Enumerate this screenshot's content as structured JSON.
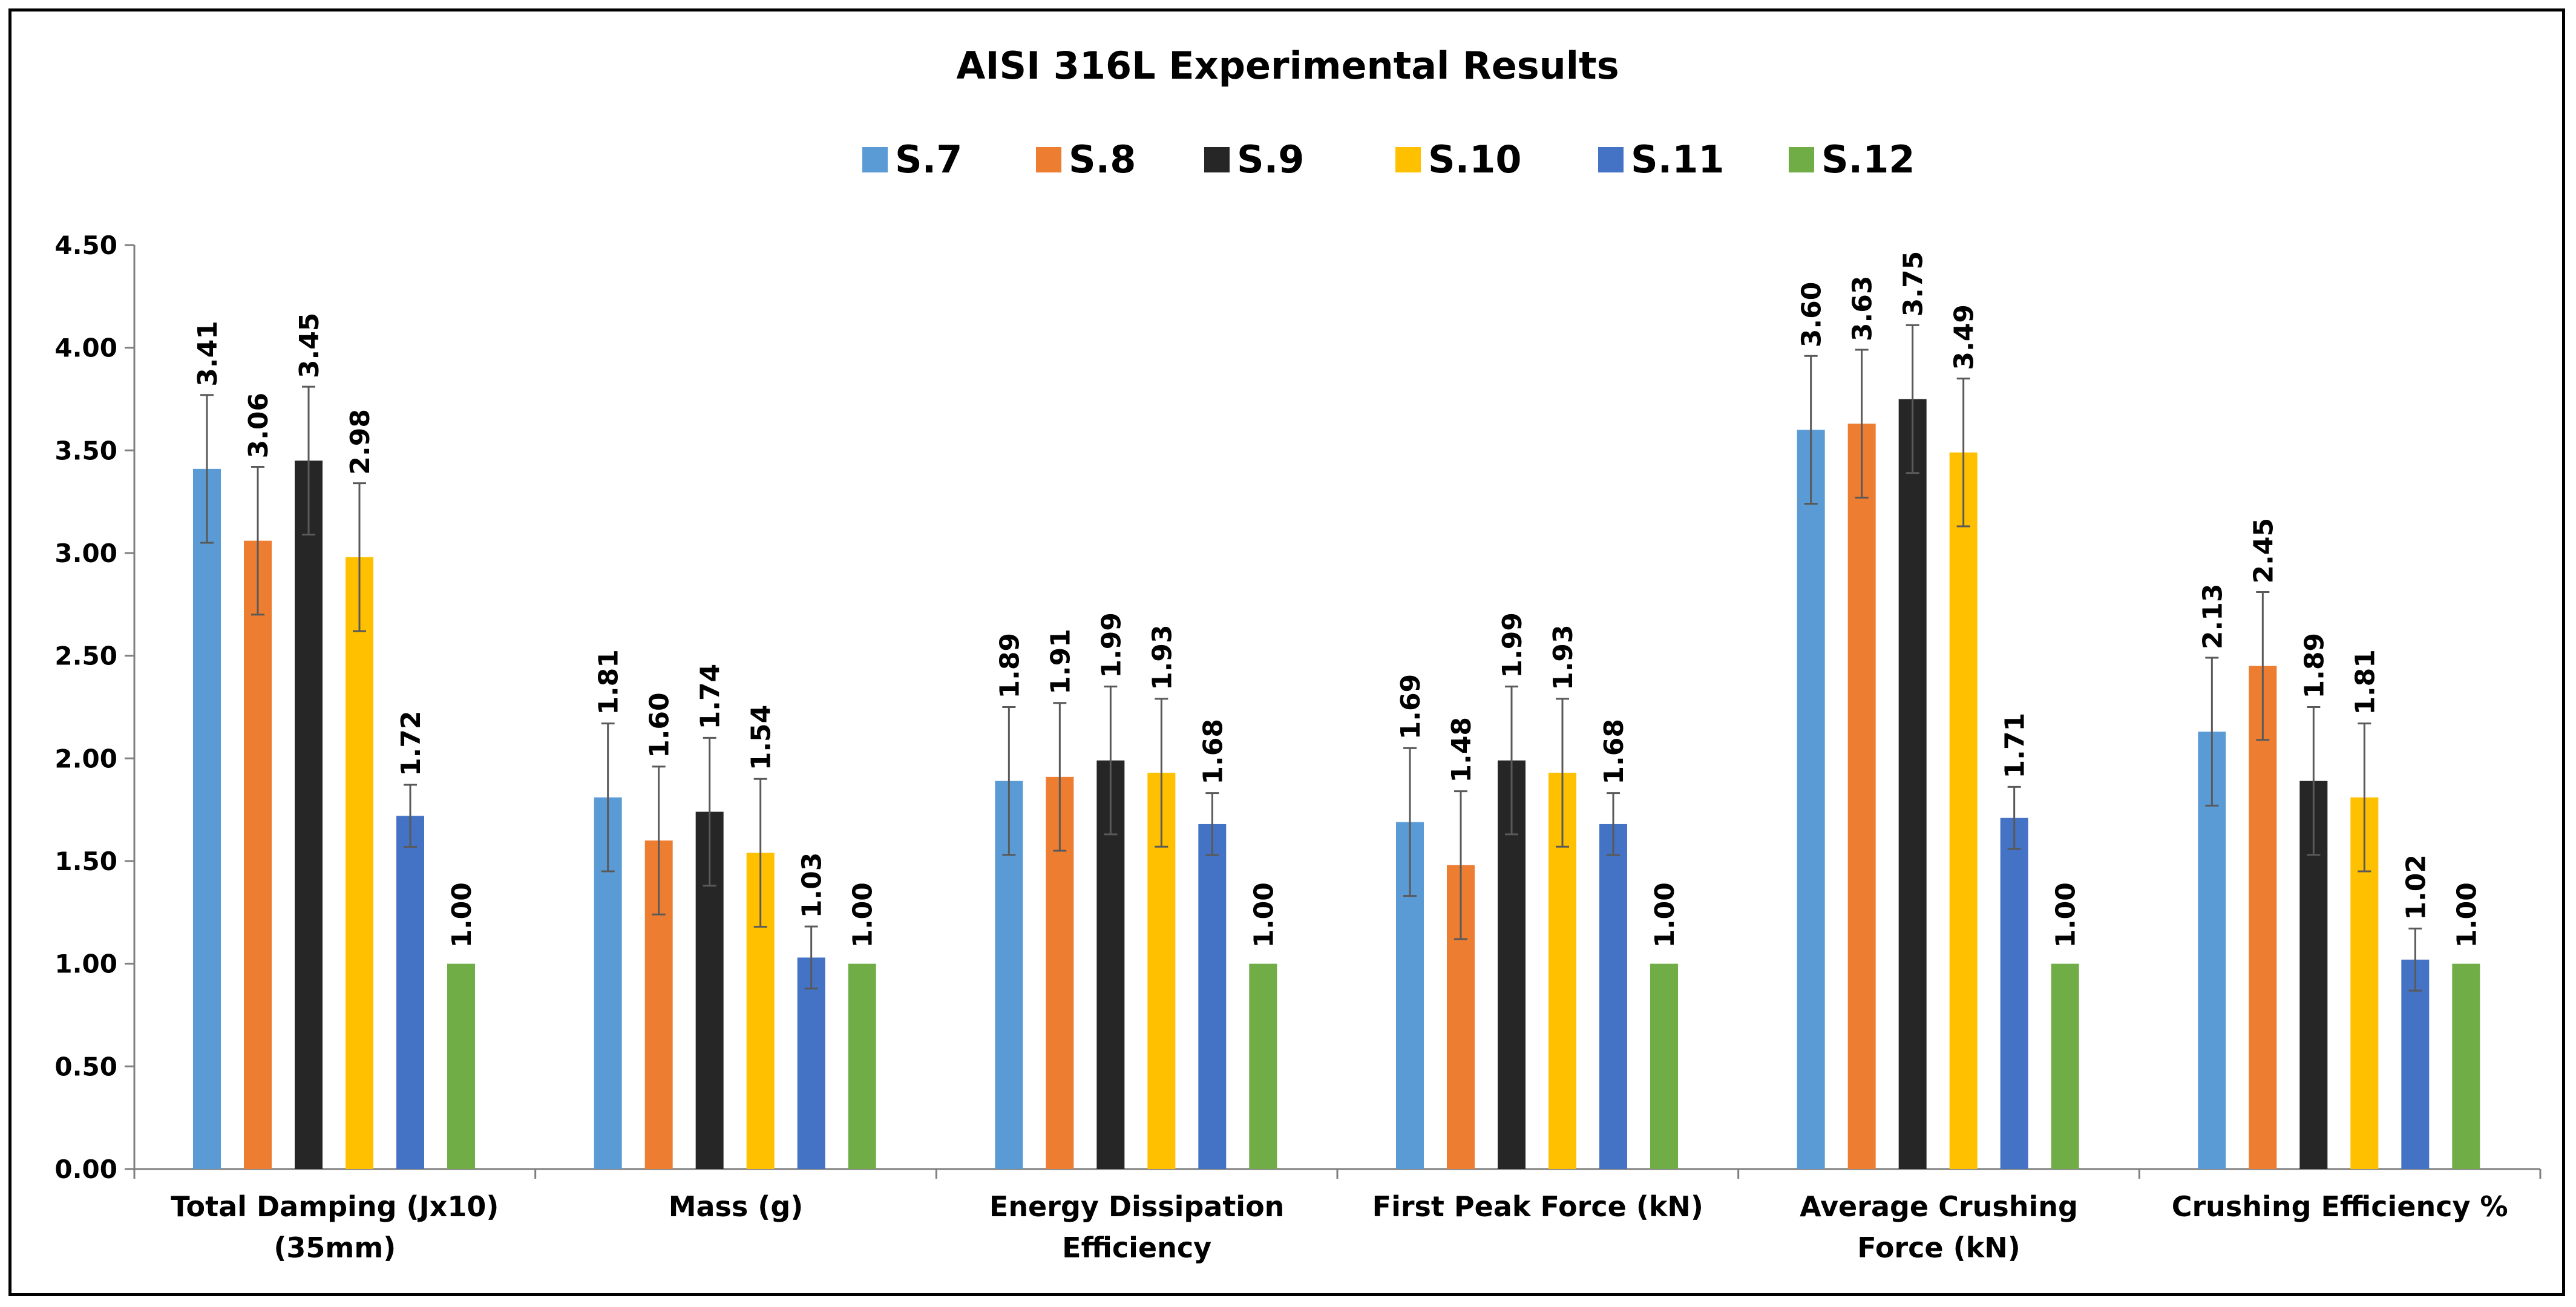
{
  "chart_data": {
    "type": "bar",
    "title": "AISI 316L Experimental Results",
    "xlabel": "",
    "ylabel": "",
    "ylim": [
      0,
      4.5
    ],
    "yticks": [
      "0.00",
      "0.50",
      "1.00",
      "1.50",
      "2.00",
      "2.50",
      "3.00",
      "3.50",
      "4.00",
      "4.50"
    ],
    "grid": false,
    "legend_position": "top",
    "error_bars": true,
    "error_size": 0.36,
    "categories": [
      [
        "Total Damping (Jx10)",
        "(35mm)"
      ],
      [
        "Mass (g)"
      ],
      [
        "Energy Dissipation",
        "Efficiency"
      ],
      [
        "First Peak Force (kN)"
      ],
      [
        "Average Crushing",
        "Force (kN)"
      ],
      [
        "Crushing Efficiency %"
      ]
    ],
    "series": [
      {
        "name": "S.7",
        "color": "#5B9BD5",
        "values": [
          3.41,
          1.81,
          1.89,
          1.69,
          3.6,
          2.13
        ]
      },
      {
        "name": "S.8",
        "color": "#ED7D31",
        "values": [
          3.06,
          1.6,
          1.91,
          1.48,
          3.63,
          2.45
        ]
      },
      {
        "name": "S.9",
        "color": "#262626",
        "values": [
          3.45,
          1.74,
          1.99,
          1.99,
          3.75,
          1.89
        ]
      },
      {
        "name": "S.10",
        "color": "#FFC000",
        "values": [
          2.98,
          1.54,
          1.93,
          1.93,
          3.49,
          1.81
        ]
      },
      {
        "name": "S.11",
        "color": "#4472C4",
        "values": [
          1.72,
          1.03,
          1.68,
          1.68,
          1.71,
          1.02
        ]
      },
      {
        "name": "S.12",
        "color": "#70AD47",
        "values": [
          1.0,
          1.0,
          1.0,
          1.0,
          1.0,
          1.0
        ]
      }
    ],
    "data_labels": [
      [
        "3.41",
        "1.81",
        "1.89",
        "1.69",
        "3.60",
        "2.13"
      ],
      [
        "3.06",
        "1.60",
        "1.91",
        "1.48",
        "3.63",
        "2.45"
      ],
      [
        "3.45",
        "1.74",
        "1.99",
        "1.99",
        "3.75",
        "1.89"
      ],
      [
        "2.98",
        "1.54",
        "1.93",
        "1.93",
        "3.49",
        "1.81"
      ],
      [
        "1.72",
        "1.03",
        "1.68",
        "1.68",
        "1.71",
        "1.02"
      ],
      [
        "1.00",
        "1.00",
        "1.00",
        "1.00",
        "1.00",
        "1.00"
      ]
    ]
  }
}
